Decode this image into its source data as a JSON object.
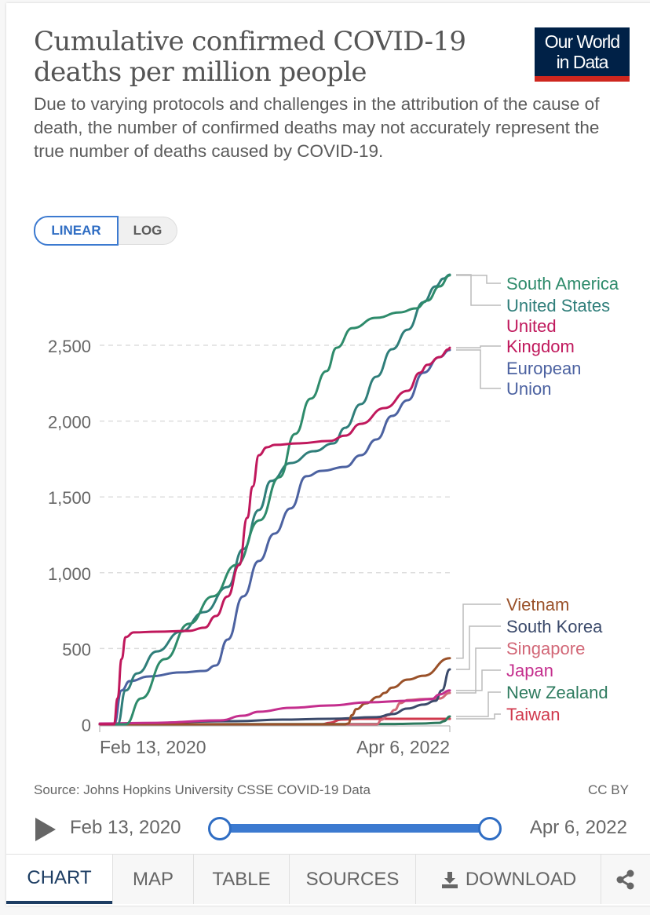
{
  "header": {
    "title_line1": "Cumulative confirmed COVID-19",
    "title_line2": "deaths per million people",
    "subtitle": "Due to varying protocols and challenges in the attribution of the cause of death, the number of confirmed deaths may not accurately represent the true number of deaths caused by COVID-19.",
    "logo_line1": "Our World",
    "logo_line2": "in Data"
  },
  "scale_toggle": {
    "linear": "LINEAR",
    "log": "LOG",
    "selected": "LINEAR"
  },
  "footer": {
    "source": "Source: Johns Hopkins University CSSE COVID-19 Data",
    "license": "CC BY"
  },
  "timeline": {
    "start": "Feb 13, 2020",
    "end": "Apr 6, 2022"
  },
  "tabs": [
    {
      "label": "CHART",
      "icon": null,
      "active": true
    },
    {
      "label": "MAP",
      "icon": null,
      "active": false
    },
    {
      "label": "TABLE",
      "icon": null,
      "active": false
    },
    {
      "label": "SOURCES",
      "icon": null,
      "active": false
    },
    {
      "label": "DOWNLOAD",
      "icon": "download-icon",
      "active": false
    },
    {
      "label": "",
      "icon": "share-icon",
      "active": false
    }
  ],
  "chart_data": {
    "type": "line",
    "title": "Cumulative confirmed COVID-19 deaths per million people",
    "xlabel": "",
    "ylabel": "",
    "x_unit": "days since Feb 13, 2020",
    "xlim": [
      0,
      783
    ],
    "ylim": [
      0,
      3000
    ],
    "yticks": [
      0,
      500,
      1000,
      1500,
      2000,
      2500
    ],
    "ytick_labels": [
      "0",
      "500",
      "1,000",
      "1,500",
      "2,000",
      "2,500"
    ],
    "xtick_labels": [
      "Feb 13, 2020",
      "Apr 6, 2022"
    ],
    "grid": "horizontal dashed",
    "legend": "right, inline labels",
    "series": [
      {
        "name": "South America",
        "color": "#2e8b6b",
        "label_lines": [
          "South America"
        ],
        "points": [
          [
            0,
            0
          ],
          [
            58,
            0
          ],
          [
            93,
            171
          ],
          [
            146,
            430
          ],
          [
            200,
            663
          ],
          [
            253,
            844
          ],
          [
            305,
            1051
          ],
          [
            358,
            1346
          ],
          [
            402,
            1630
          ],
          [
            437,
            1915
          ],
          [
            472,
            2148
          ],
          [
            507,
            2329
          ],
          [
            530,
            2484
          ],
          [
            565,
            2613
          ],
          [
            618,
            2681
          ],
          [
            671,
            2717
          ],
          [
            707,
            2743
          ],
          [
            733,
            2795
          ],
          [
            760,
            2888
          ],
          [
            783,
            2961
          ]
        ]
      },
      {
        "name": "United States",
        "color": "#2f7e7a",
        "label_lines": [
          "United States"
        ],
        "points": [
          [
            0,
            0
          ],
          [
            40,
            0
          ],
          [
            58,
            223
          ],
          [
            84,
            336
          ],
          [
            128,
            481
          ],
          [
            181,
            611
          ],
          [
            234,
            740
          ],
          [
            286,
            906
          ],
          [
            321,
            1155
          ],
          [
            356,
            1413
          ],
          [
            383,
            1605
          ],
          [
            427,
            1723
          ],
          [
            479,
            1801
          ],
          [
            523,
            1853
          ],
          [
            549,
            1956
          ],
          [
            584,
            2112
          ],
          [
            619,
            2293
          ],
          [
            654,
            2474
          ],
          [
            689,
            2603
          ],
          [
            724,
            2784
          ],
          [
            751,
            2888
          ],
          [
            769,
            2940
          ],
          [
            783,
            2966
          ]
        ]
      },
      {
        "name": "United Kingdom",
        "color": "#c0185c",
        "label_lines": [
          "United",
          "Kingdom"
        ],
        "points": [
          [
            0,
            0
          ],
          [
            32,
            0
          ],
          [
            40,
            171
          ],
          [
            49,
            430
          ],
          [
            58,
            575
          ],
          [
            76,
            606
          ],
          [
            128,
            611
          ],
          [
            198,
            616
          ],
          [
            234,
            637
          ],
          [
            260,
            714
          ],
          [
            286,
            843
          ],
          [
            312,
            1051
          ],
          [
            330,
            1362
          ],
          [
            342,
            1568
          ],
          [
            356,
            1775
          ],
          [
            374,
            1827
          ],
          [
            391,
            1843
          ],
          [
            444,
            1853
          ],
          [
            514,
            1869
          ],
          [
            549,
            1904
          ],
          [
            584,
            1982
          ],
          [
            637,
            2086
          ],
          [
            689,
            2200
          ],
          [
            716,
            2319
          ],
          [
            733,
            2371
          ],
          [
            760,
            2422
          ],
          [
            781,
            2474
          ],
          [
            783,
            2484
          ]
        ]
      },
      {
        "name": "European Union",
        "color": "#4c62a1",
        "label_lines": [
          "European",
          "Union"
        ],
        "points": [
          [
            0,
            0
          ],
          [
            32,
            0
          ],
          [
            49,
            223
          ],
          [
            67,
            285
          ],
          [
            111,
            316
          ],
          [
            181,
            342
          ],
          [
            234,
            352
          ],
          [
            260,
            388
          ],
          [
            286,
            559
          ],
          [
            321,
            844
          ],
          [
            356,
            1077
          ],
          [
            391,
            1258
          ],
          [
            427,
            1424
          ],
          [
            462,
            1636
          ],
          [
            497,
            1672
          ],
          [
            549,
            1698
          ],
          [
            584,
            1775
          ],
          [
            619,
            1879
          ],
          [
            654,
            2034
          ],
          [
            689,
            2138
          ],
          [
            724,
            2319
          ],
          [
            760,
            2422
          ],
          [
            783,
            2469
          ]
        ]
      },
      {
        "name": "Vietnam",
        "color": "#9a5129",
        "label_lines": [
          "Vietnam"
        ],
        "points": [
          [
            0,
            0
          ],
          [
            548,
            0
          ],
          [
            556,
            5
          ],
          [
            564,
            60
          ],
          [
            574,
            100
          ],
          [
            595,
            138
          ],
          [
            623,
            181
          ],
          [
            637,
            207
          ],
          [
            654,
            242
          ],
          [
            689,
            295
          ],
          [
            724,
            320
          ],
          [
            783,
            436
          ]
        ]
      },
      {
        "name": "South Korea",
        "color": "#3b4a6b",
        "label_lines": [
          "South Korea"
        ],
        "points": [
          [
            0,
            0
          ],
          [
            304,
            21
          ],
          [
            409,
            31
          ],
          [
            514,
            36
          ],
          [
            619,
            47
          ],
          [
            654,
            67
          ],
          [
            689,
            104
          ],
          [
            724,
            130
          ],
          [
            751,
            155
          ],
          [
            765,
            223
          ],
          [
            783,
            362
          ]
        ]
      },
      {
        "name": "Singapore",
        "color": "#d26777",
        "label_lines": [
          "Singapore"
        ],
        "points": [
          [
            0,
            0
          ],
          [
            620,
            0
          ],
          [
            630,
            30
          ],
          [
            645,
            60
          ],
          [
            660,
            95
          ],
          [
            672,
            140
          ],
          [
            689,
            160
          ],
          [
            724,
            166
          ],
          [
            760,
            170
          ],
          [
            783,
            207
          ]
        ]
      },
      {
        "name": "Japan",
        "color": "#c42e8d",
        "label_lines": [
          "Japan"
        ],
        "points": [
          [
            0,
            5
          ],
          [
            128,
            10
          ],
          [
            269,
            26
          ],
          [
            321,
            57
          ],
          [
            356,
            83
          ],
          [
            427,
            109
          ],
          [
            514,
            124
          ],
          [
            602,
            145
          ],
          [
            689,
            155
          ],
          [
            742,
            166
          ],
          [
            760,
            197
          ],
          [
            783,
            223
          ]
        ]
      },
      {
        "name": "New Zealand",
        "color": "#2e7b5f",
        "label_lines": [
          "New Zealand"
        ],
        "points": [
          [
            0,
            0
          ],
          [
            650,
            2
          ],
          [
            720,
            5
          ],
          [
            760,
            10
          ],
          [
            770,
            21
          ],
          [
            783,
            52
          ]
        ]
      },
      {
        "name": "Taiwan",
        "color": "#d0394d",
        "label_lines": [
          "Taiwan"
        ],
        "points": [
          [
            0,
            0
          ],
          [
            497,
            0
          ],
          [
            514,
            10
          ],
          [
            540,
            31
          ],
          [
            580,
            36
          ],
          [
            650,
            36
          ],
          [
            783,
            36
          ]
        ]
      }
    ]
  }
}
